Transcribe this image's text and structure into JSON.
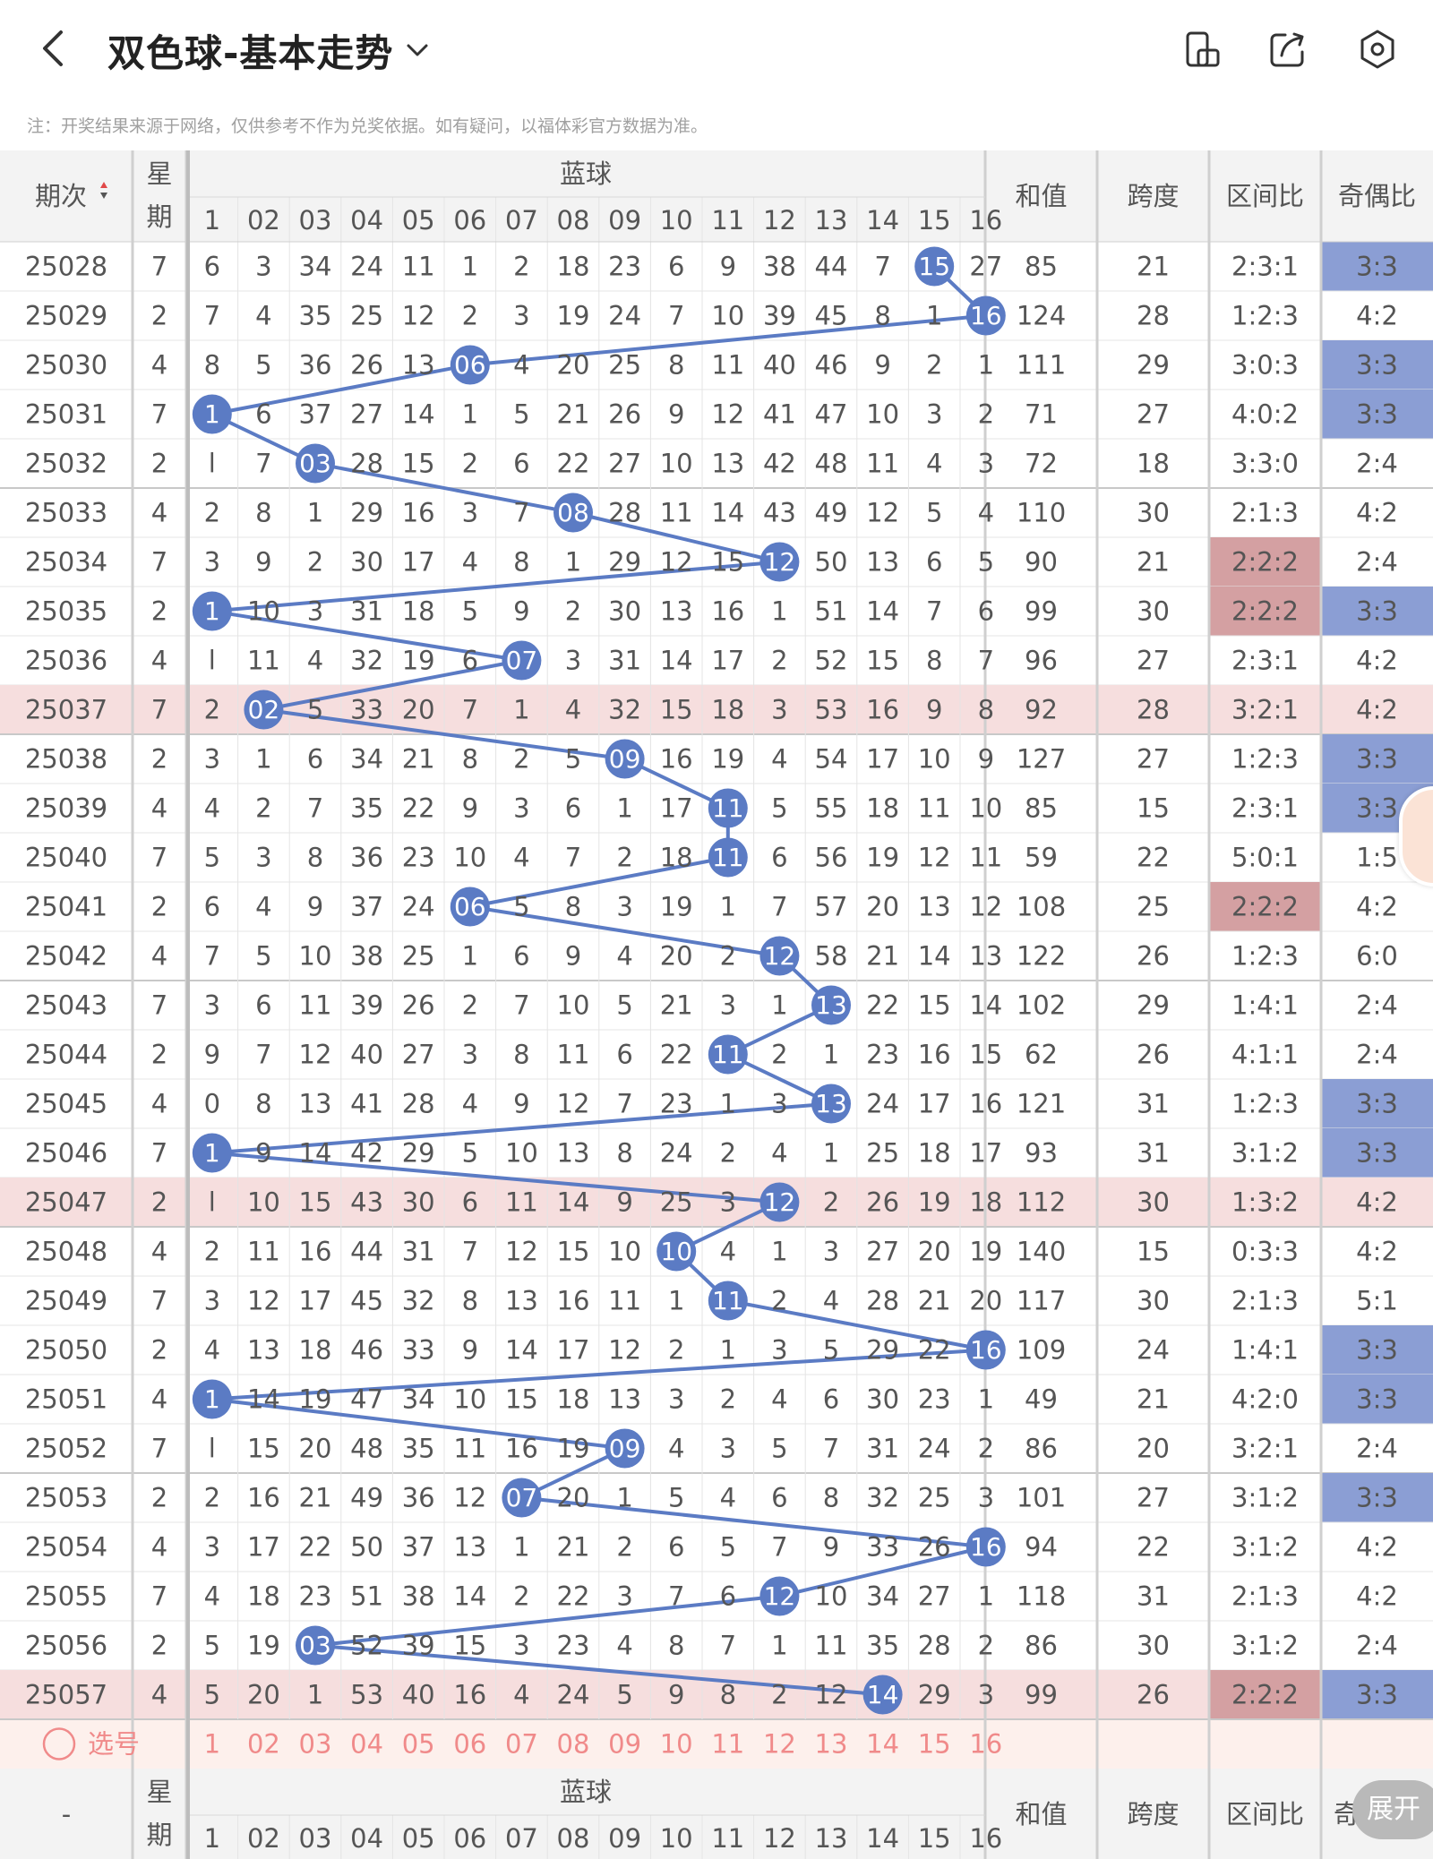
{
  "header": {
    "title": "双色球-基本走势",
    "icons": [
      "back-arrow-icon",
      "chevron-down-icon",
      "phone-rotate-icon",
      "share-icon",
      "settings-hexagon-icon"
    ]
  },
  "note": "注：开奖结果来源于网络，仅供参考不作为兑奖依据。如有疑问，以福体彩官方数据为准。",
  "table": {
    "col_issue": "期次",
    "col_week": "星期",
    "col_blue": "蓝球",
    "col_sum": "和值",
    "col_span": "跨度",
    "col_range": "区间比",
    "col_odd": "奇偶比",
    "num_headers": [
      "1",
      "02",
      "03",
      "04",
      "05",
      "06",
      "07",
      "08",
      "09",
      "10",
      "11",
      "12",
      "13",
      "14",
      "15",
      "16"
    ],
    "footer_issue": "-",
    "footer_odd": "奇",
    "select_label": "选号",
    "rows": [
      {
        "issue": "25028",
        "week": "7",
        "cells": [
          "6",
          "3",
          "34",
          "24",
          "11",
          "1",
          "2",
          "18",
          "23",
          "6",
          "9",
          "38",
          "44",
          "7",
          "15",
          "27"
        ],
        "blue": 15,
        "sum": "85",
        "span": "21",
        "range": "2:3:1",
        "odd": "3:3",
        "hl": false,
        "rh": false,
        "oh": true
      },
      {
        "issue": "25029",
        "week": "2",
        "cells": [
          "7",
          "4",
          "35",
          "25",
          "12",
          "2",
          "3",
          "19",
          "24",
          "7",
          "10",
          "39",
          "45",
          "8",
          "1",
          "16"
        ],
        "blue": 16,
        "sum": "124",
        "span": "28",
        "range": "1:2:3",
        "odd": "4:2",
        "hl": false,
        "rh": false,
        "oh": false
      },
      {
        "issue": "25030",
        "week": "4",
        "cells": [
          "8",
          "5",
          "36",
          "26",
          "13",
          "06",
          "4",
          "20",
          "25",
          "8",
          "11",
          "40",
          "46",
          "9",
          "2",
          "1"
        ],
        "blue": 6,
        "sum": "111",
        "span": "29",
        "range": "3:0:3",
        "odd": "3:3",
        "hl": false,
        "rh": false,
        "oh": true
      },
      {
        "issue": "25031",
        "week": "7",
        "cells": [
          "1",
          "6",
          "37",
          "27",
          "14",
          "1",
          "5",
          "21",
          "26",
          "9",
          "12",
          "41",
          "47",
          "10",
          "3",
          "2"
        ],
        "blue": 1,
        "sum": "71",
        "span": "27",
        "range": "4:0:2",
        "odd": "3:3",
        "hl": false,
        "rh": false,
        "oh": true
      },
      {
        "issue": "25032",
        "week": "2",
        "cells": [
          "l",
          "7",
          "03",
          "28",
          "15",
          "2",
          "6",
          "22",
          "27",
          "10",
          "13",
          "42",
          "48",
          "11",
          "4",
          "3"
        ],
        "blue": 3,
        "sum": "72",
        "span": "18",
        "range": "3:3:0",
        "odd": "2:4",
        "hl": false,
        "rh": false,
        "oh": false
      },
      {
        "issue": "25033",
        "week": "4",
        "cells": [
          "2",
          "8",
          "1",
          "29",
          "16",
          "3",
          "7",
          "08",
          "28",
          "11",
          "14",
          "43",
          "49",
          "12",
          "5",
          "4"
        ],
        "blue": 8,
        "sum": "110",
        "span": "30",
        "range": "2:1:3",
        "odd": "4:2",
        "hl": false,
        "rh": false,
        "oh": false
      },
      {
        "issue": "25034",
        "week": "7",
        "cells": [
          "3",
          "9",
          "2",
          "30",
          "17",
          "4",
          "8",
          "1",
          "29",
          "12",
          "15",
          "12",
          "50",
          "13",
          "6",
          "5"
        ],
        "blue": 12,
        "sum": "90",
        "span": "21",
        "range": "2:2:2",
        "odd": "2:4",
        "hl": false,
        "rh": true,
        "oh": false
      },
      {
        "issue": "25035",
        "week": "2",
        "cells": [
          "1",
          "10",
          "3",
          "31",
          "18",
          "5",
          "9",
          "2",
          "30",
          "13",
          "16",
          "1",
          "51",
          "14",
          "7",
          "6"
        ],
        "blue": 1,
        "sum": "99",
        "span": "30",
        "range": "2:2:2",
        "odd": "3:3",
        "hl": false,
        "rh": true,
        "oh": true
      },
      {
        "issue": "25036",
        "week": "4",
        "cells": [
          "l",
          "11",
          "4",
          "32",
          "19",
          "6",
          "07",
          "3",
          "31",
          "14",
          "17",
          "2",
          "52",
          "15",
          "8",
          "7"
        ],
        "blue": 7,
        "sum": "96",
        "span": "27",
        "range": "2:3:1",
        "odd": "4:2",
        "hl": false,
        "rh": false,
        "oh": false
      },
      {
        "issue": "25037",
        "week": "7",
        "cells": [
          "2",
          "02",
          "5",
          "33",
          "20",
          "7",
          "1",
          "4",
          "32",
          "15",
          "18",
          "3",
          "53",
          "16",
          "9",
          "8"
        ],
        "blue": 2,
        "sum": "92",
        "span": "28",
        "range": "3:2:1",
        "odd": "4:2",
        "hl": true,
        "rh": false,
        "oh": false
      },
      {
        "issue": "25038",
        "week": "2",
        "cells": [
          "3",
          "1",
          "6",
          "34",
          "21",
          "8",
          "2",
          "5",
          "09",
          "16",
          "19",
          "4",
          "54",
          "17",
          "10",
          "9"
        ],
        "blue": 9,
        "sum": "127",
        "span": "27",
        "range": "1:2:3",
        "odd": "3:3",
        "hl": false,
        "rh": false,
        "oh": true
      },
      {
        "issue": "25039",
        "week": "4",
        "cells": [
          "4",
          "2",
          "7",
          "35",
          "22",
          "9",
          "3",
          "6",
          "1",
          "17",
          "11",
          "5",
          "55",
          "18",
          "11",
          "10"
        ],
        "blue": 11,
        "sum": "85",
        "span": "15",
        "range": "2:3:1",
        "odd": "3:3",
        "hl": false,
        "rh": false,
        "oh": true
      },
      {
        "issue": "25040",
        "week": "7",
        "cells": [
          "5",
          "3",
          "8",
          "36",
          "23",
          "10",
          "4",
          "7",
          "2",
          "18",
          "11",
          "6",
          "56",
          "19",
          "12",
          "11"
        ],
        "blue": 11,
        "sum": "59",
        "span": "22",
        "range": "5:0:1",
        "odd": "1:5",
        "hl": false,
        "rh": false,
        "oh": false
      },
      {
        "issue": "25041",
        "week": "2",
        "cells": [
          "6",
          "4",
          "9",
          "37",
          "24",
          "06",
          "5",
          "8",
          "3",
          "19",
          "1",
          "7",
          "57",
          "20",
          "13",
          "12"
        ],
        "blue": 6,
        "sum": "108",
        "span": "25",
        "range": "2:2:2",
        "odd": "4:2",
        "hl": false,
        "rh": true,
        "oh": false
      },
      {
        "issue": "25042",
        "week": "4",
        "cells": [
          "7",
          "5",
          "10",
          "38",
          "25",
          "1",
          "6",
          "9",
          "4",
          "20",
          "2",
          "12",
          "58",
          "21",
          "14",
          "13"
        ],
        "blue": 12,
        "sum": "122",
        "span": "26",
        "range": "1:2:3",
        "odd": "6:0",
        "hl": false,
        "rh": false,
        "oh": false
      },
      {
        "issue": "25043",
        "week": "7",
        "cells": [
          "3",
          "6",
          "11",
          "39",
          "26",
          "2",
          "7",
          "10",
          "5",
          "21",
          "3",
          "1",
          "13",
          "22",
          "15",
          "14"
        ],
        "blue": 13,
        "sum": "102",
        "span": "29",
        "range": "1:4:1",
        "odd": "2:4",
        "hl": false,
        "rh": false,
        "oh": false
      },
      {
        "issue": "25044",
        "week": "2",
        "cells": [
          "9",
          "7",
          "12",
          "40",
          "27",
          "3",
          "8",
          "11",
          "6",
          "22",
          "11",
          "2",
          "1",
          "23",
          "16",
          "15"
        ],
        "blue": 11,
        "sum": "62",
        "span": "26",
        "range": "4:1:1",
        "odd": "2:4",
        "hl": false,
        "rh": false,
        "oh": false
      },
      {
        "issue": "25045",
        "week": "4",
        "cells": [
          "0",
          "8",
          "13",
          "41",
          "28",
          "4",
          "9",
          "12",
          "7",
          "23",
          "1",
          "3",
          "13",
          "24",
          "17",
          "16"
        ],
        "blue": 13,
        "sum": "121",
        "span": "31",
        "range": "1:2:3",
        "odd": "3:3",
        "hl": false,
        "rh": false,
        "oh": true
      },
      {
        "issue": "25046",
        "week": "7",
        "cells": [
          "1",
          "9",
          "14",
          "42",
          "29",
          "5",
          "10",
          "13",
          "8",
          "24",
          "2",
          "4",
          "1",
          "25",
          "18",
          "17"
        ],
        "blue": 1,
        "sum": "93",
        "span": "31",
        "range": "3:1:2",
        "odd": "3:3",
        "hl": false,
        "rh": false,
        "oh": true
      },
      {
        "issue": "25047",
        "week": "2",
        "cells": [
          "l",
          "10",
          "15",
          "43",
          "30",
          "6",
          "11",
          "14",
          "9",
          "25",
          "3",
          "12",
          "2",
          "26",
          "19",
          "18"
        ],
        "blue": 12,
        "sum": "112",
        "span": "30",
        "range": "1:3:2",
        "odd": "4:2",
        "hl": true,
        "rh": false,
        "oh": false
      },
      {
        "issue": "25048",
        "week": "4",
        "cells": [
          "2",
          "11",
          "16",
          "44",
          "31",
          "7",
          "12",
          "15",
          "10",
          "10",
          "4",
          "1",
          "3",
          "27",
          "20",
          "19"
        ],
        "blue": 10,
        "sum": "140",
        "span": "15",
        "range": "0:3:3",
        "odd": "4:2",
        "hl": false,
        "rh": false,
        "oh": false
      },
      {
        "issue": "25049",
        "week": "7",
        "cells": [
          "3",
          "12",
          "17",
          "45",
          "32",
          "8",
          "13",
          "16",
          "11",
          "1",
          "11",
          "2",
          "4",
          "28",
          "21",
          "20"
        ],
        "blue": 11,
        "sum": "117",
        "span": "30",
        "range": "2:1:3",
        "odd": "5:1",
        "hl": false,
        "rh": false,
        "oh": false
      },
      {
        "issue": "25050",
        "week": "2",
        "cells": [
          "4",
          "13",
          "18",
          "46",
          "33",
          "9",
          "14",
          "17",
          "12",
          "2",
          "1",
          "3",
          "5",
          "29",
          "22",
          "16"
        ],
        "blue": 16,
        "sum": "109",
        "span": "24",
        "range": "1:4:1",
        "odd": "3:3",
        "hl": false,
        "rh": false,
        "oh": true
      },
      {
        "issue": "25051",
        "week": "4",
        "cells": [
          "1",
          "14",
          "19",
          "47",
          "34",
          "10",
          "15",
          "18",
          "13",
          "3",
          "2",
          "4",
          "6",
          "30",
          "23",
          "1"
        ],
        "blue": 1,
        "sum": "49",
        "span": "21",
        "range": "4:2:0",
        "odd": "3:3",
        "hl": false,
        "rh": false,
        "oh": true
      },
      {
        "issue": "25052",
        "week": "7",
        "cells": [
          "l",
          "15",
          "20",
          "48",
          "35",
          "11",
          "16",
          "19",
          "09",
          "4",
          "3",
          "5",
          "7",
          "31",
          "24",
          "2"
        ],
        "blue": 9,
        "sum": "86",
        "span": "20",
        "range": "3:2:1",
        "odd": "2:4",
        "hl": false,
        "rh": false,
        "oh": false
      },
      {
        "issue": "25053",
        "week": "2",
        "cells": [
          "2",
          "16",
          "21",
          "49",
          "36",
          "12",
          "07",
          "20",
          "1",
          "5",
          "4",
          "6",
          "8",
          "32",
          "25",
          "3"
        ],
        "blue": 7,
        "sum": "101",
        "span": "27",
        "range": "3:1:2",
        "odd": "3:3",
        "hl": false,
        "rh": false,
        "oh": true
      },
      {
        "issue": "25054",
        "week": "4",
        "cells": [
          "3",
          "17",
          "22",
          "50",
          "37",
          "13",
          "1",
          "21",
          "2",
          "6",
          "5",
          "7",
          "9",
          "33",
          "26",
          "16"
        ],
        "blue": 16,
        "sum": "94",
        "span": "22",
        "range": "3:1:2",
        "odd": "4:2",
        "hl": false,
        "rh": false,
        "oh": false
      },
      {
        "issue": "25055",
        "week": "7",
        "cells": [
          "4",
          "18",
          "23",
          "51",
          "38",
          "14",
          "2",
          "22",
          "3",
          "7",
          "6",
          "12",
          "10",
          "34",
          "27",
          "1"
        ],
        "blue": 12,
        "sum": "118",
        "span": "31",
        "range": "2:1:3",
        "odd": "4:2",
        "hl": false,
        "rh": false,
        "oh": false
      },
      {
        "issue": "25056",
        "week": "2",
        "cells": [
          "5",
          "19",
          "03",
          "52",
          "39",
          "15",
          "3",
          "23",
          "4",
          "8",
          "7",
          "1",
          "11",
          "35",
          "28",
          "2"
        ],
        "blue": 3,
        "sum": "86",
        "span": "30",
        "range": "3:1:2",
        "odd": "2:4",
        "hl": false,
        "rh": false,
        "oh": false
      },
      {
        "issue": "25057",
        "week": "4",
        "cells": [
          "5",
          "20",
          "1",
          "53",
          "40",
          "16",
          "4",
          "24",
          "5",
          "9",
          "8",
          "2",
          "12",
          "14",
          "29",
          "3"
        ],
        "blue": 14,
        "sum": "99",
        "span": "26",
        "range": "2:2:2",
        "odd": "3:3",
        "hl": true,
        "rh": true,
        "oh": true
      }
    ]
  },
  "expand_label": "展开",
  "colors": {
    "ball": "#5b7bc4",
    "line": "#5b7bc4",
    "odd_highlight": "#8b9ed4",
    "range_highlight": "#d4a0a2",
    "row_highlight": "#f6dede",
    "select_text": "#f08a8a",
    "header_bg": "#f3f3f3"
  }
}
